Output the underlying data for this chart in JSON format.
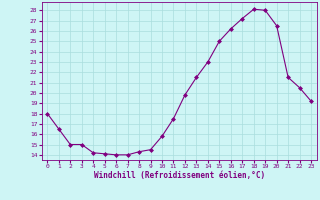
{
  "x": [
    0,
    1,
    2,
    3,
    4,
    5,
    6,
    7,
    8,
    9,
    10,
    11,
    12,
    13,
    14,
    15,
    16,
    17,
    18,
    19,
    20,
    21,
    22,
    23
  ],
  "y": [
    18,
    16.5,
    15,
    15,
    14.2,
    14.1,
    14,
    14,
    14.3,
    14.5,
    15.8,
    17.5,
    19.8,
    21.5,
    23,
    25,
    26.2,
    27.2,
    28.1,
    28.0,
    26.5,
    21.5,
    20.5,
    19.2
  ],
  "line_color": "#800080",
  "marker": "D",
  "marker_size": 2.0,
  "bg_color": "#cef5f5",
  "grid_color": "#aadddd",
  "xlabel": "Windchill (Refroidissement éolien,°C)",
  "xlabel_color": "#800080",
  "tick_color": "#800080",
  "ylim": [
    13.5,
    28.8
  ],
  "yticks": [
    14,
    15,
    16,
    17,
    18,
    19,
    20,
    21,
    22,
    23,
    24,
    25,
    26,
    27,
    28
  ],
  "xlim": [
    -0.5,
    23.5
  ],
  "xticks": [
    0,
    1,
    2,
    3,
    4,
    5,
    6,
    7,
    8,
    9,
    10,
    11,
    12,
    13,
    14,
    15,
    16,
    17,
    18,
    19,
    20,
    21,
    22,
    23
  ]
}
